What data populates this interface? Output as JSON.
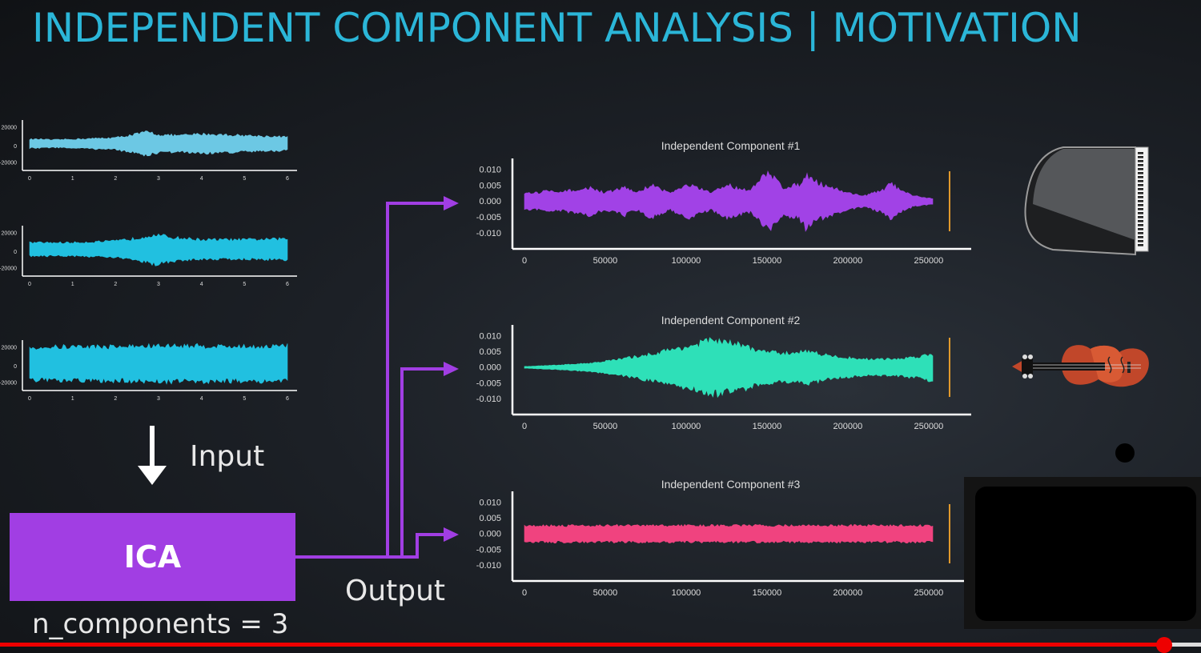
{
  "title": "INDEPENDENT COMPONENT ANALYSIS | MOTIVATION",
  "input_label": "Input",
  "output_label": "Output",
  "ica_label": "ICA",
  "n_components_label": "n_components = 3",
  "colors": {
    "title": "#2bb6d8",
    "ica_box": "#a13ee3",
    "arrows": "#a13ee3",
    "input_wave_1": "#6cc8e4",
    "input_wave_2": "#21c0e0",
    "input_wave_3": "#21c0e0",
    "component_1": "#a142e6",
    "component_2": "#2ee0b8",
    "component_3": "#f0437f",
    "end_marker": "#e39a2c",
    "progress_bar": "#ee0000"
  },
  "icons": [
    "piano-icon",
    "violin-icon"
  ],
  "chart_data": [
    {
      "type": "line",
      "name": "input-1",
      "yticks": [
        "20000",
        "0",
        "-20000"
      ],
      "xticks": [
        "0",
        "1",
        "2",
        "3",
        "4",
        "5",
        "6"
      ],
      "xlim": [
        0,
        6
      ],
      "ylim": [
        -25000,
        25000
      ],
      "envelope": [
        [
          0,
          6000
        ],
        [
          0.3,
          6000
        ],
        [
          0.5,
          5000
        ],
        [
          1,
          6000
        ],
        [
          1.5,
          7000
        ],
        [
          2,
          8000
        ],
        [
          2.5,
          13000
        ],
        [
          2.75,
          16000
        ],
        [
          3,
          12000
        ],
        [
          3.5,
          11000
        ],
        [
          4,
          13000
        ],
        [
          4.5,
          12000
        ],
        [
          5,
          11000
        ],
        [
          5.5,
          10000
        ],
        [
          6,
          9000
        ]
      ]
    },
    {
      "type": "line",
      "name": "input-2",
      "yticks": [
        "20000",
        "0",
        "-20000"
      ],
      "xticks": [
        "0",
        "1",
        "2",
        "3",
        "4",
        "5",
        "6"
      ],
      "xlim": [
        0,
        6
      ],
      "ylim": [
        -25000,
        25000
      ],
      "envelope": [
        [
          0,
          9000
        ],
        [
          1,
          9000
        ],
        [
          2,
          11000
        ],
        [
          2.5,
          15000
        ],
        [
          2.9,
          20000
        ],
        [
          3.3,
          16000
        ],
        [
          4,
          13000
        ],
        [
          5,
          13000
        ],
        [
          6,
          14000
        ]
      ]
    },
    {
      "type": "line",
      "name": "input-3",
      "yticks": [
        "20000",
        "0",
        "-20000"
      ],
      "xticks": [
        "0",
        "1",
        "2",
        "3",
        "4",
        "5",
        "6"
      ],
      "xlim": [
        0,
        6
      ],
      "ylim": [
        -25000,
        25000
      ],
      "envelope": [
        [
          0,
          22000
        ],
        [
          1,
          23000
        ],
        [
          2,
          23000
        ],
        [
          3,
          24000
        ],
        [
          4,
          24000
        ],
        [
          5,
          23000
        ],
        [
          6,
          24000
        ]
      ]
    },
    {
      "type": "line",
      "title": "Independent Component #1",
      "yticks": [
        "0.010",
        "0.005",
        "0.000",
        "-0.005",
        "-0.010"
      ],
      "xticks": [
        "0",
        "50000",
        "100000",
        "150000",
        "200000",
        "250000"
      ],
      "xlim": [
        0,
        255000
      ],
      "ylim": [
        -0.012,
        0.012
      ],
      "end_marker_x": 254000,
      "envelope": [
        [
          0,
          0.003
        ],
        [
          10000,
          0.003
        ],
        [
          12000,
          0.004
        ],
        [
          20000,
          0.003
        ],
        [
          30000,
          0.004
        ],
        [
          36000,
          0.004
        ],
        [
          40000,
          0.005
        ],
        [
          50000,
          0.003
        ],
        [
          56000,
          0.004
        ],
        [
          62000,
          0.005
        ],
        [
          70000,
          0.003
        ],
        [
          78000,
          0.006
        ],
        [
          82000,
          0.005
        ],
        [
          90000,
          0.003
        ],
        [
          102000,
          0.006
        ],
        [
          106000,
          0.005
        ],
        [
          115000,
          0.003
        ],
        [
          126000,
          0.006
        ],
        [
          130000,
          0.005
        ],
        [
          140000,
          0.004
        ],
        [
          148000,
          0.009
        ],
        [
          152000,
          0.01
        ],
        [
          160000,
          0.005
        ],
        [
          170000,
          0.006
        ],
        [
          174000,
          0.01
        ],
        [
          180000,
          0.007
        ],
        [
          190000,
          0.005
        ],
        [
          200000,
          0.003
        ],
        [
          210000,
          0.002
        ],
        [
          222000,
          0.004
        ],
        [
          226000,
          0.007
        ],
        [
          232000,
          0.004
        ],
        [
          240000,
          0.002
        ],
        [
          252000,
          0.001
        ]
      ]
    },
    {
      "type": "line",
      "title": "Independent Component #2",
      "yticks": [
        "0.010",
        "0.005",
        "0.000",
        "-0.005",
        "-0.010"
      ],
      "xticks": [
        "0",
        "50000",
        "100000",
        "150000",
        "200000",
        "250000"
      ],
      "xlim": [
        0,
        255000
      ],
      "ylim": [
        -0.012,
        0.012
      ],
      "end_marker_x": 254000,
      "envelope": [
        [
          0,
          0.0003
        ],
        [
          20000,
          0.0008
        ],
        [
          40000,
          0.0015
        ],
        [
          60000,
          0.003
        ],
        [
          80000,
          0.005
        ],
        [
          95000,
          0.007
        ],
        [
          105000,
          0.008
        ],
        [
          115000,
          0.01
        ],
        [
          125000,
          0.009
        ],
        [
          135000,
          0.008
        ],
        [
          145000,
          0.006
        ],
        [
          160000,
          0.005
        ],
        [
          175000,
          0.006
        ],
        [
          190000,
          0.004
        ],
        [
          210000,
          0.003
        ],
        [
          230000,
          0.003
        ],
        [
          245000,
          0.004
        ],
        [
          253000,
          0.005
        ]
      ]
    },
    {
      "type": "line",
      "title": "Independent Component #3",
      "yticks": [
        "0.010",
        "0.005",
        "0.000",
        "-0.005",
        "-0.010"
      ],
      "xticks": [
        "0",
        "50000",
        "100000",
        "150000",
        "200000",
        "250000"
      ],
      "xlim": [
        0,
        255000
      ],
      "ylim": [
        -0.012,
        0.012
      ],
      "end_marker_x": 254000,
      "envelope": [
        [
          0,
          0.003
        ],
        [
          50000,
          0.003
        ],
        [
          100000,
          0.003
        ],
        [
          150000,
          0.003
        ],
        [
          200000,
          0.003
        ],
        [
          253000,
          0.003
        ]
      ]
    }
  ]
}
